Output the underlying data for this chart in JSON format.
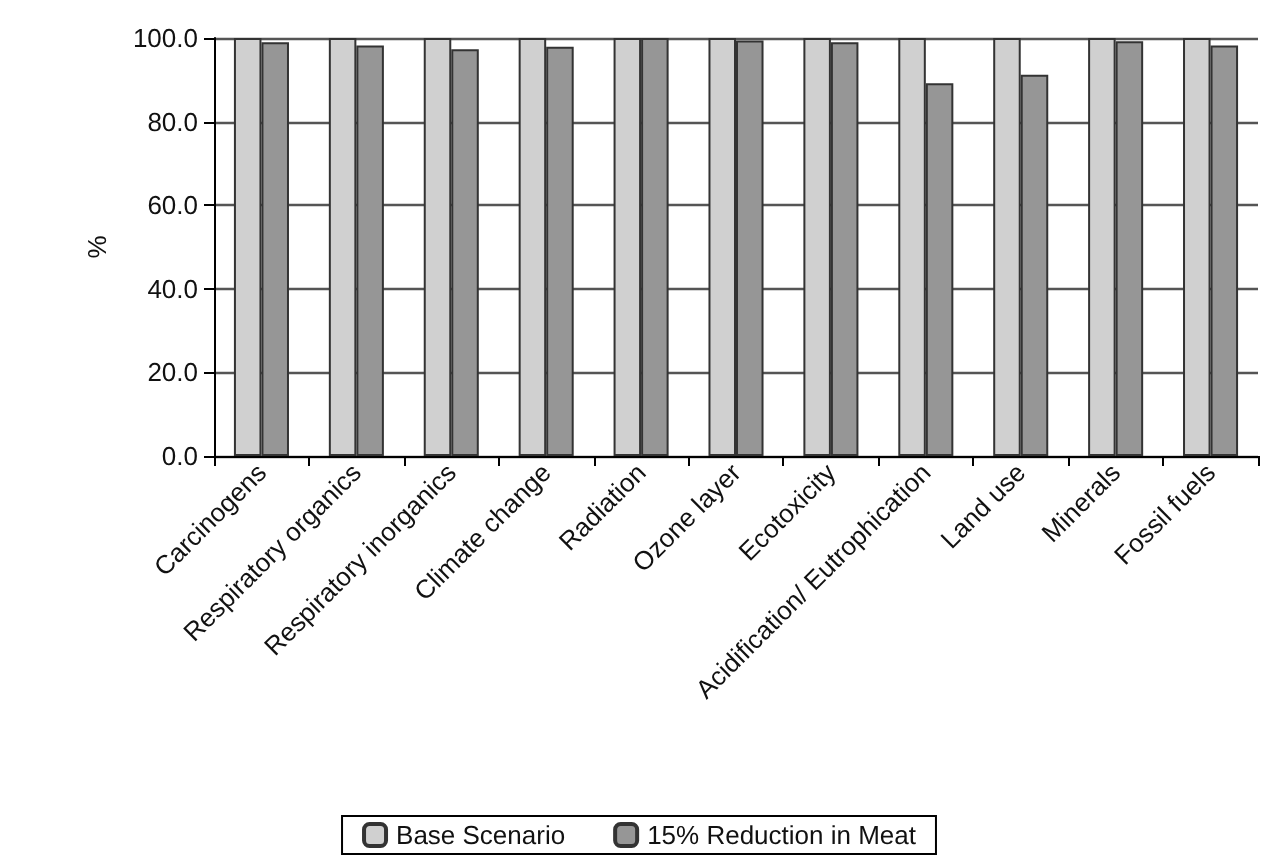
{
  "chart_data": {
    "type": "bar",
    "ylabel": "%",
    "categories": [
      "Carcinogens",
      "Respiratory organics",
      "Respiratory inorganics",
      "Climate change",
      "Radiation",
      "Ozone layer",
      "Ecotoxicity",
      "Acidification/ Eutrophication",
      "Land use",
      "Minerals",
      "Fossil fuels"
    ],
    "series": [
      {
        "name": "Base Scenario",
        "color": "#d0d0d0",
        "values": [
          100,
          100,
          100,
          100,
          100,
          100,
          100,
          100,
          100,
          100,
          100
        ]
      },
      {
        "name": "15% Reduction in Meat",
        "color": "#969696",
        "values": [
          99.0,
          98.2,
          97.3,
          97.9,
          100,
          99.4,
          99.0,
          89.2,
          91.2,
          99.2,
          98.2
        ]
      }
    ],
    "ylim": [
      0,
      100
    ],
    "yticks": [
      {
        "value": 0,
        "label": "0.0"
      },
      {
        "value": 20,
        "label": "20.0"
      },
      {
        "value": 40,
        "label": "40.0"
      },
      {
        "value": 60,
        "label": "60.0"
      },
      {
        "value": 80,
        "label": "80.0"
      },
      {
        "value": 100,
        "label": "100.0"
      }
    ],
    "grid": "y",
    "legend": "bottom"
  }
}
